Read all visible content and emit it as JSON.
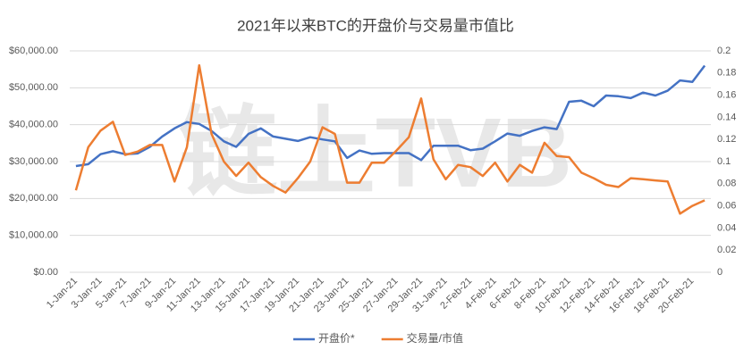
{
  "chart_data": {
    "type": "line",
    "title": "2021年以来BTC的开盘价与交易量市值比",
    "watermark": "链上TVB",
    "categories": [
      "1-Jan-21",
      null,
      "3-Jan-21",
      null,
      "5-Jan-21",
      null,
      "7-Jan-21",
      null,
      "9-Jan-21",
      null,
      "11-Jan-21",
      null,
      "13-Jan-21",
      null,
      "15-Jan-21",
      null,
      "17-Jan-21",
      null,
      "19-Jan-21",
      null,
      "21-Jan-21",
      null,
      "23-Jan-21",
      null,
      "25-Jan-21",
      null,
      "27-Jan-21",
      null,
      "29-Jan-21",
      null,
      "31-Jan-21",
      null,
      "2-Feb-21",
      null,
      "4-Feb-21",
      null,
      "6-Feb-21",
      null,
      "8-Feb-21",
      null,
      "10-Feb-21",
      null,
      "12-Feb-21",
      null,
      "14-Feb-21",
      null,
      "16-Feb-21",
      null,
      "18-Feb-21",
      null,
      "20-Feb-21",
      null
    ],
    "series": [
      {
        "name": "开盘价*",
        "color": "#4472c4",
        "axis": "y",
        "values": [
          28800,
          29300,
          32000,
          32800,
          32000,
          32200,
          34000,
          36800,
          39000,
          40700,
          40200,
          38300,
          35500,
          34000,
          37500,
          39000,
          36800,
          36200,
          35600,
          36600,
          36000,
          35500,
          31000,
          33000,
          32100,
          32300,
          32300,
          32300,
          30400,
          34300,
          34300,
          34300,
          33100,
          33500,
          35500,
          37600,
          37000,
          38300,
          39300,
          38800,
          46200,
          46500,
          45000,
          47900,
          47700,
          47200,
          48700,
          47900,
          49200,
          52000,
          51600,
          56000
        ]
      },
      {
        "name": "交易量/市值",
        "color": "#ed7d31",
        "axis": "y2",
        "values": [
          0.074,
          0.113,
          0.128,
          0.136,
          0.106,
          0.109,
          0.115,
          0.115,
          0.082,
          0.113,
          0.187,
          0.125,
          0.1,
          0.087,
          0.099,
          0.086,
          0.078,
          0.072,
          0.085,
          0.1,
          0.131,
          0.125,
          0.081,
          0.081,
          0.099,
          0.099,
          0.11,
          0.122,
          0.157,
          0.102,
          0.084,
          0.097,
          0.095,
          0.087,
          0.099,
          0.082,
          0.097,
          0.09,
          0.117,
          0.105,
          0.104,
          0.09,
          0.085,
          0.079,
          0.077,
          0.085,
          0.084,
          0.083,
          0.082,
          0.053,
          0.06,
          0.065
        ]
      }
    ],
    "ylim": [
      0,
      60000
    ],
    "yticks": [
      {
        "value": 0,
        "label": "$0.00"
      },
      {
        "value": 10000,
        "label": "$10,000.00"
      },
      {
        "value": 20000,
        "label": "$20,000.00"
      },
      {
        "value": 30000,
        "label": "$30,000.00"
      },
      {
        "value": 40000,
        "label": "$40,000.00"
      },
      {
        "value": 50000,
        "label": "$50,000.00"
      },
      {
        "value": 60000,
        "label": "$60,000.00"
      }
    ],
    "y2lim": [
      0,
      0.2
    ],
    "y2ticks": [
      0,
      0.02,
      0.04,
      0.06,
      0.08,
      0.1,
      0.12,
      0.14,
      0.16,
      0.18,
      0.2
    ],
    "grid": true,
    "legend": "bottom"
  }
}
